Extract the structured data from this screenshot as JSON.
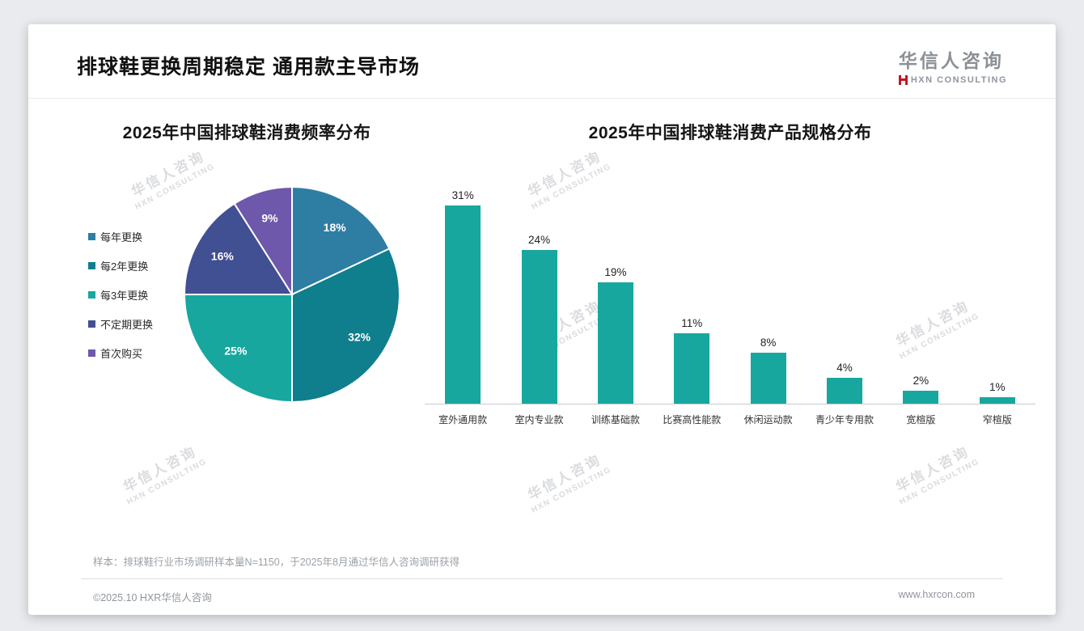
{
  "page": {
    "title": "排球鞋更换周期稳定 通用款主导市场",
    "logo": {
      "name": "华信人咨询",
      "subtitle": "HXN CONSULTING"
    },
    "watermark": {
      "line1": "华信人咨询",
      "line2": "HXN CONSULTING"
    },
    "footnote": "样本：排球鞋行业市场调研样本量N=1150，于2025年8月通过华信人咨询调研获得",
    "footer": {
      "copyright": "©2025.10 HXR华信人咨询",
      "website": "www.hxrcon.com"
    }
  },
  "chart_data": [
    {
      "type": "pie",
      "title": "2025年中国排球鞋消费频率分布",
      "labels": [
        "每年更换",
        "每2年更换",
        "每3年更换",
        "不定期更换",
        "首次购买"
      ],
      "values": [
        18,
        32,
        25,
        16,
        9
      ],
      "unit": "%",
      "colors": [
        "#2e7ea3",
        "#0f7e8d",
        "#17a79f",
        "#414f93",
        "#6e58ab"
      ],
      "legend_position": "left",
      "start_angle": -90,
      "direction": "clockwise"
    },
    {
      "type": "bar",
      "title": "2025年中国排球鞋消费产品规格分布",
      "categories": [
        "室外通用款",
        "室内专业款",
        "训练基础款",
        "比赛高性能款",
        "休闲运动款",
        "青少年专用款",
        "宽楦版",
        "窄楦版"
      ],
      "values": [
        31,
        24,
        19,
        11,
        8,
        4,
        2,
        1
      ],
      "unit": "%",
      "bar_color": "#17a79f",
      "value_labels": true,
      "grid": false,
      "ylim": [
        0,
        33
      ]
    }
  ]
}
